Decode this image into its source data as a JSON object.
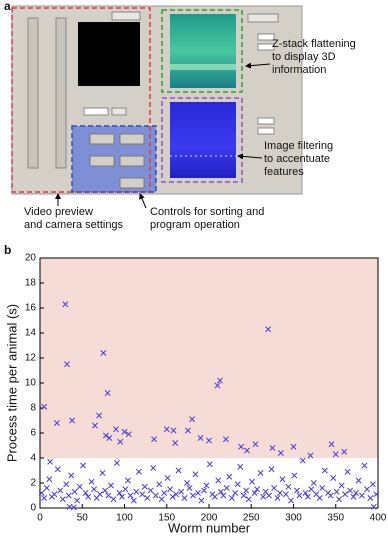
{
  "panel_a": {
    "label": "a",
    "annotations": [
      {
        "lines": [
          "Z-stack flattening",
          "to display 3D",
          "information"
        ]
      },
      {
        "lines": [
          "Image filtering",
          "to accentuate",
          "features"
        ]
      },
      {
        "lines": [
          "Video preview",
          "and camera settings"
        ]
      },
      {
        "lines": [
          "Controls for sorting and",
          "program operation"
        ]
      }
    ]
  },
  "chart_data": {
    "type": "scatter",
    "panel_label": "b",
    "x_label": "Worm number",
    "y_label": "Process time per animal (s)",
    "xlim": [
      0,
      400
    ],
    "ylim": [
      0,
      20
    ],
    "xticks": [
      0,
      50,
      100,
      150,
      200,
      250,
      300,
      350,
      400
    ],
    "yticks": [
      0,
      2,
      4,
      6,
      8,
      10,
      12,
      14,
      16,
      18,
      20
    ],
    "shaded_band": [
      4,
      20
    ],
    "shaded_color": "#f6dcd6",
    "color": "#4a3fd4",
    "x": [
      2,
      5,
      8,
      11,
      14,
      17,
      21,
      24,
      27,
      31,
      34,
      37,
      41,
      44,
      47,
      51,
      54,
      57,
      61,
      64,
      67,
      71,
      74,
      77,
      81,
      84,
      87,
      91,
      94,
      97,
      101,
      104,
      107,
      111,
      114,
      117,
      121,
      124,
      127,
      131,
      134,
      137,
      141,
      144,
      147,
      151,
      154,
      157,
      161,
      164,
      167,
      171,
      174,
      177,
      181,
      184,
      187,
      191,
      194,
      197,
      201,
      204,
      207,
      211,
      214,
      217,
      221,
      224,
      227,
      231,
      234,
      237,
      241,
      244,
      247,
      251,
      254,
      257,
      261,
      264,
      267,
      271,
      274,
      277,
      281,
      284,
      287,
      291,
      294,
      297,
      301,
      304,
      307,
      311,
      314,
      317,
      321,
      324,
      327,
      331,
      334,
      337,
      341,
      344,
      347,
      351,
      354,
      357,
      361,
      364,
      367,
      371,
      374,
      377,
      381,
      384,
      387,
      391,
      394,
      398,
      5,
      12,
      20,
      30,
      32,
      38,
      35,
      40,
      65,
      70,
      75,
      78,
      80,
      82,
      90,
      95,
      100,
      105,
      135,
      150,
      158,
      160,
      175,
      180,
      190,
      200,
      210,
      213,
      220,
      238,
      245,
      255,
      270,
      275,
      285,
      300,
      320,
      345,
      350,
      360,
      395
    ],
    "values": [
      1.2,
      0.8,
      1.6,
      2.3,
      0.9,
      1.1,
      3.1,
      1.4,
      0.7,
      1.9,
      1.0,
      2.6,
      1.3,
      0.6,
      1.7,
      3.4,
      1.2,
      0.9,
      2.1,
      1.5,
      0.8,
      1.1,
      2.8,
      1.4,
      1.0,
      1.8,
      0.7,
      3.6,
      1.2,
      0.9,
      1.5,
      2.2,
      1.0,
      0.6,
      1.3,
      2.9,
      1.1,
      1.7,
      0.8,
      1.4,
      3.2,
      1.0,
      1.9,
      0.7,
      1.2,
      2.4,
      1.5,
      0.9,
      1.1,
      3.0,
      1.3,
      0.8,
      2.0,
      1.6,
      1.0,
      2.7,
      1.2,
      0.6,
      1.4,
      1.8,
      3.5,
      1.1,
      0.9,
      2.2,
      1.3,
      1.0,
      1.6,
      2.5,
      0.8,
      1.2,
      1.9,
      3.3,
      1.0,
      1.4,
      0.7,
      2.1,
      1.2,
      1.5,
      2.8,
      0.9,
      1.3,
      1.0,
      3.1,
      1.6,
      0.8,
      1.2,
      2.3,
      1.1,
      1.7,
      0.6,
      2.6,
      1.4,
      1.0,
      3.8,
      1.2,
      0.9,
      1.5,
      2.0,
      1.1,
      0.8,
      1.6,
      3.0,
      1.2,
      1.0,
      2.4,
      1.3,
      0.7,
      1.8,
      1.1,
      2.9,
      1.4,
      0.9,
      1.2,
      2.2,
      1.0,
      3.4,
      1.5,
      0.8,
      1.9,
      1.1,
      8.1,
      3.7,
      6.8,
      16.3,
      11.5,
      7.0,
      0.1,
      0.05,
      6.6,
      7.4,
      12.4,
      5.8,
      9.2,
      5.6,
      6.3,
      5.3,
      6.1,
      5.9,
      5.5,
      6.3,
      6.2,
      5.2,
      6.2,
      7.1,
      5.6,
      5.4,
      9.8,
      10.2,
      5.5,
      4.9,
      4.6,
      5.1,
      14.3,
      4.8,
      4.4,
      4.9,
      4.2,
      5.1,
      4.3,
      4.5,
      0.1
    ]
  }
}
